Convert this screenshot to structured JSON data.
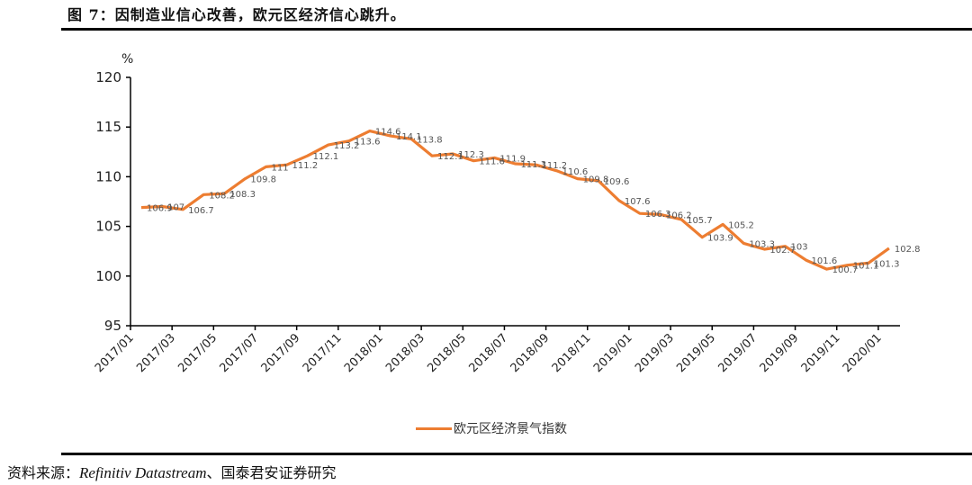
{
  "title": "图 7：因制造业信心改善，欧元区经济信心跳升。",
  "source": {
    "prefix": "资料来源：",
    "english": "Refinitiv Datastream",
    "suffix": "、国泰君安证券研究"
  },
  "chart_data": {
    "type": "line",
    "title": "图 7：因制造业信心改善，欧元区经济信心跳升。",
    "xlabel": "",
    "ylabel": "%",
    "ylim": [
      95,
      120
    ],
    "yticks": [
      "95",
      "100",
      "105",
      "110",
      "115",
      "120"
    ],
    "grid": false,
    "legend_position": "bottom-center",
    "x": [
      "2017/01",
      "2017/02",
      "2017/03",
      "2017/04",
      "2017/05",
      "2017/06",
      "2017/07",
      "2017/08",
      "2017/09",
      "2017/10",
      "2017/11",
      "2017/12",
      "2018/01",
      "2018/02",
      "2018/03",
      "2018/04",
      "2018/05",
      "2018/06",
      "2018/07",
      "2018/08",
      "2018/09",
      "2018/10",
      "2018/11",
      "2018/12",
      "2019/01",
      "2019/02",
      "2019/03",
      "2019/04",
      "2019/05",
      "2019/06",
      "2019/07",
      "2019/08",
      "2019/09",
      "2019/10",
      "2019/11",
      "2019/12",
      "2020/01"
    ],
    "xtick_labels": [
      "2017/01",
      "2017/03",
      "2017/05",
      "2017/07",
      "2017/09",
      "2017/11",
      "2018/01",
      "2018/03",
      "2018/05",
      "2018/07",
      "2018/09",
      "2018/11",
      "2019/01",
      "2019/03",
      "2019/05",
      "2019/07",
      "2019/09",
      "2019/11",
      "2020/01"
    ],
    "series": [
      {
        "name": "欧元区经济景气指数",
        "color": "#ED7D31",
        "values": [
          106.9,
          107,
          106.7,
          108.2,
          108.3,
          109.8,
          111,
          111.2,
          112.1,
          113.2,
          113.6,
          114.6,
          114.1,
          113.8,
          112.1,
          112.3,
          111.6,
          111.9,
          111.3,
          111.2,
          110.6,
          109.8,
          109.6,
          107.6,
          106.3,
          106.2,
          105.7,
          103.9,
          105.2,
          103.3,
          102.7,
          103,
          101.6,
          100.7,
          101.1,
          101.3,
          102.8
        ],
        "labels": [
          "106.9",
          "107",
          "106.7",
          "108.2",
          "108.3",
          "109.8",
          "111",
          "111.2",
          "112.1",
          "113.2",
          "113.6",
          "114.6",
          "114.1",
          "113.8",
          "112.1",
          "112.3",
          "111.6",
          "111.9",
          "111.3",
          "111.2",
          "110.6",
          "109.8",
          "109.6",
          "107.6",
          "106.3",
          "106.2",
          "105.7",
          "103.9",
          "105.2",
          "103.3",
          "102.7",
          "103",
          "101.6",
          "100.7",
          "101.1",
          "101.3",
          "102.8"
        ]
      }
    ]
  }
}
